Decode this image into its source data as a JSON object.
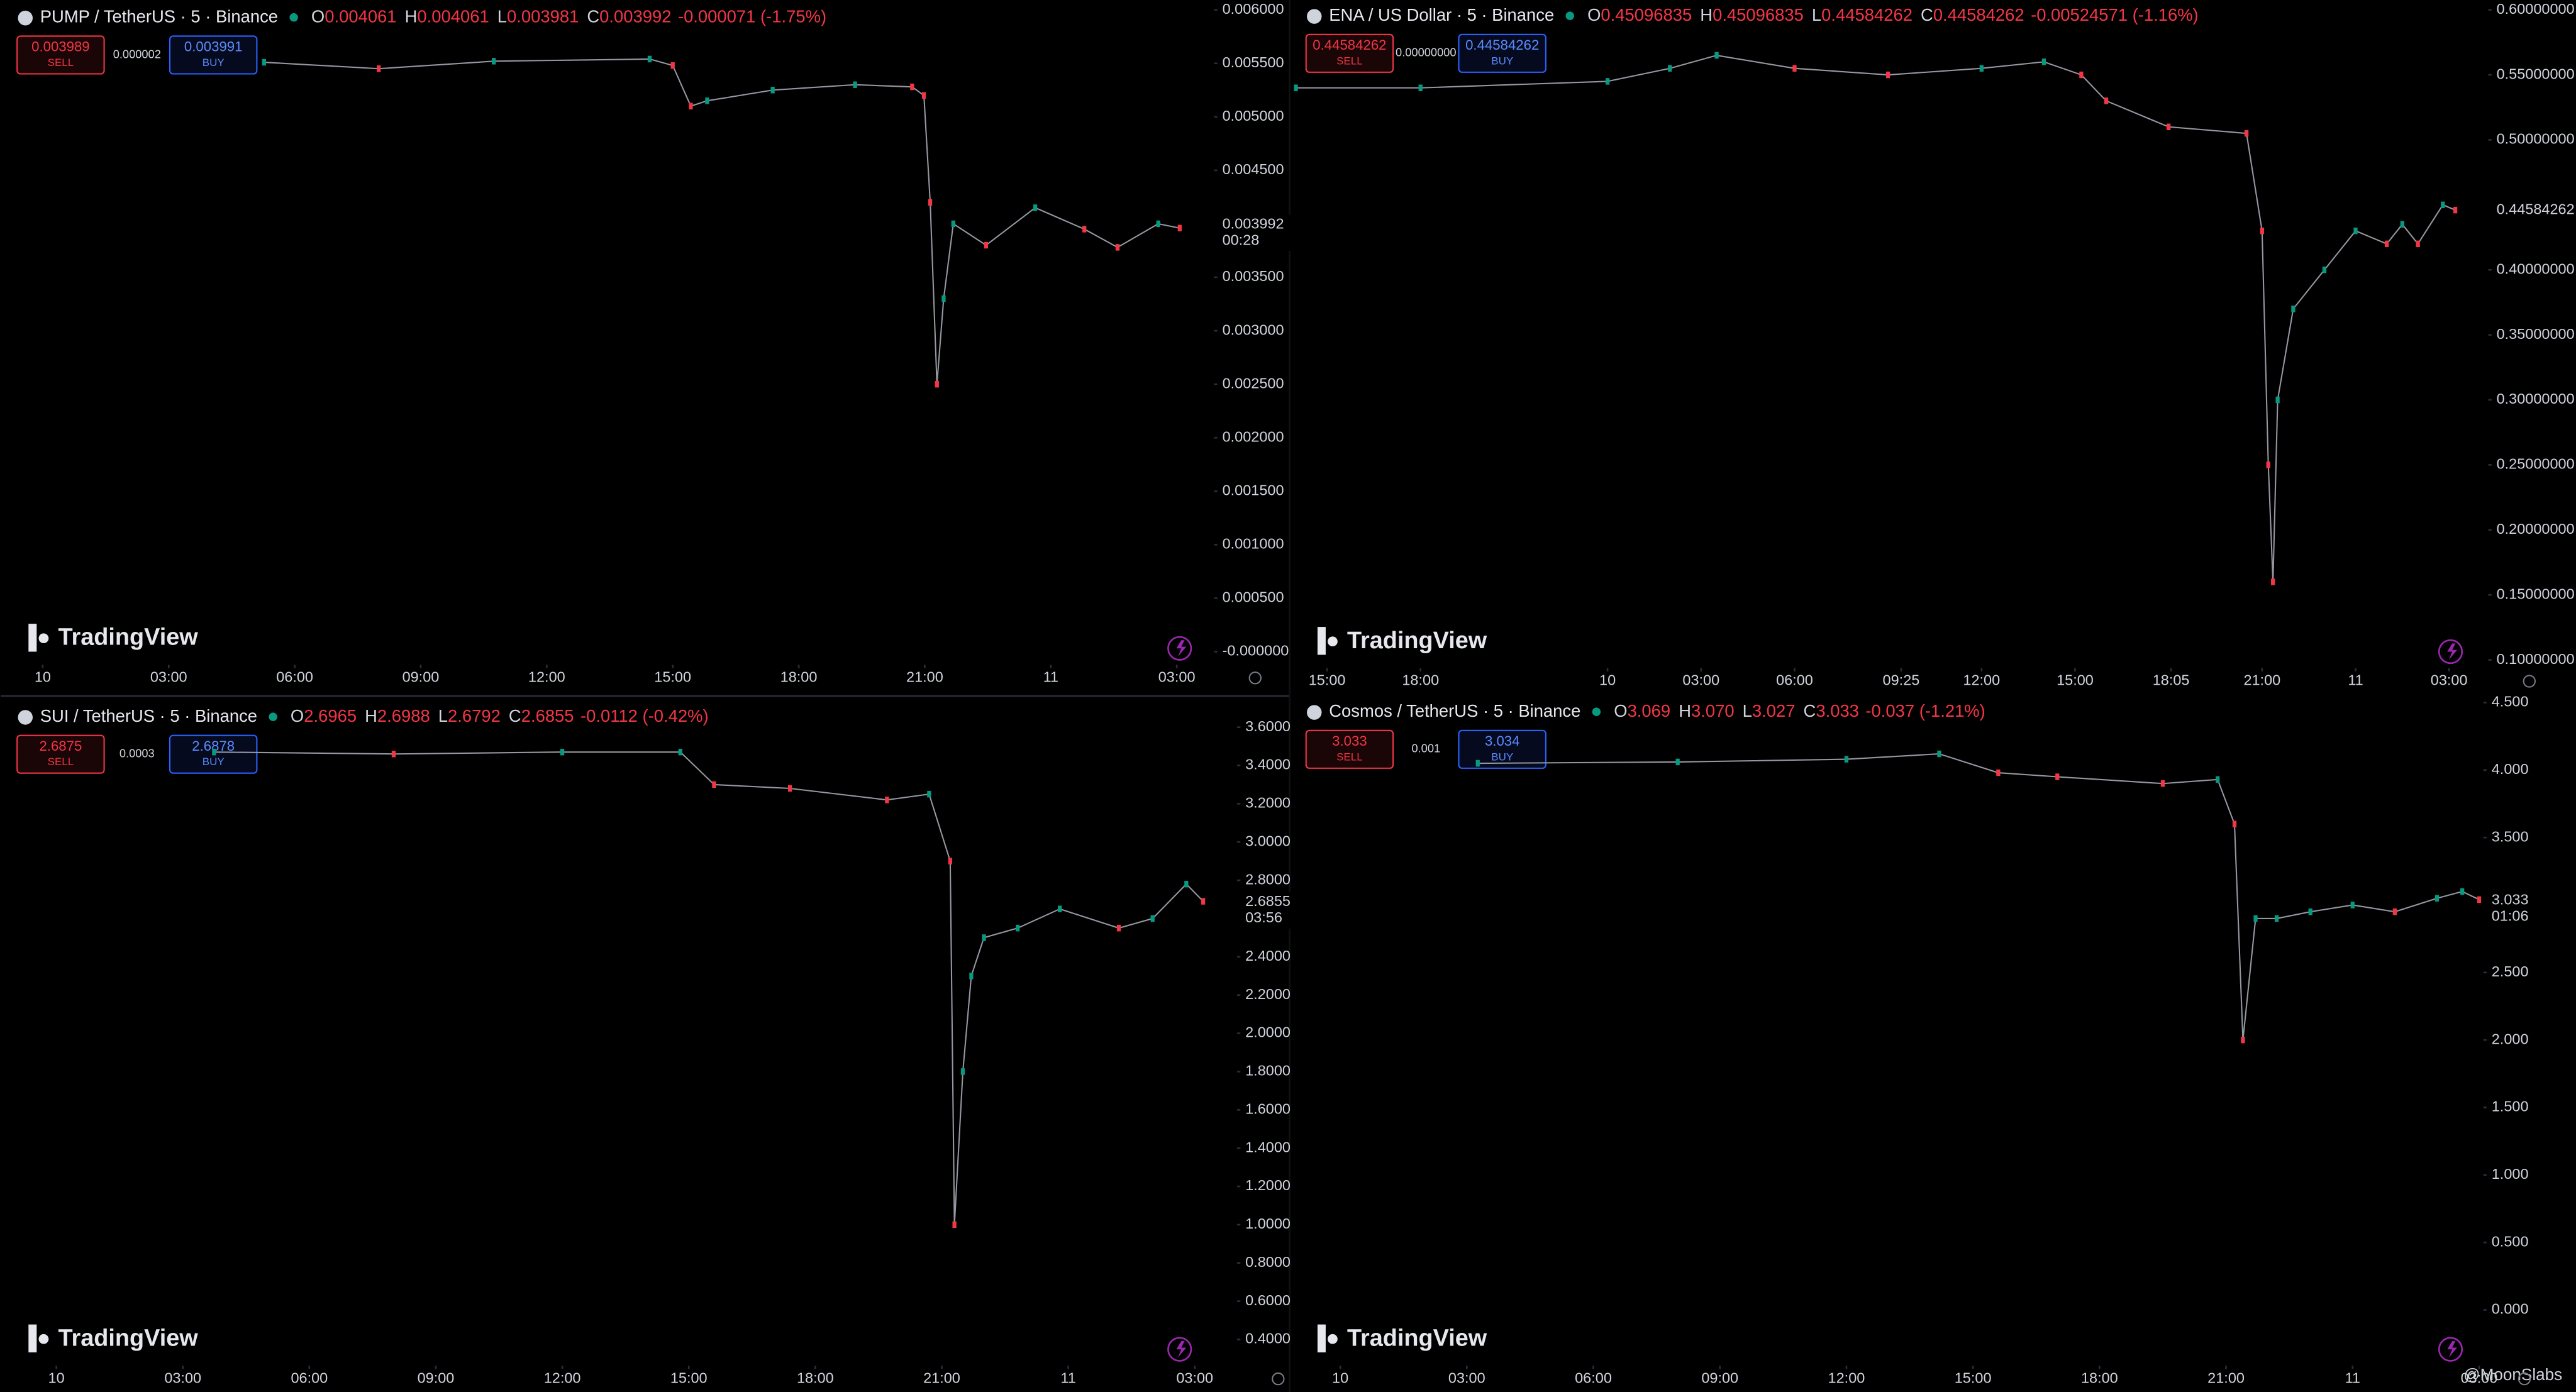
{
  "chart_data": [
    {
      "type": "line",
      "title": "PUMP / TetherUS · 5 · Binance",
      "ohlc": [
        {
          "label": "O",
          "value": "0.004061"
        },
        {
          "label": "H",
          "value": "0.004061"
        },
        {
          "label": "L",
          "value": "0.003981"
        },
        {
          "label": "C",
          "value": "0.003992"
        }
      ],
      "change": "-0.000071 (-1.75%)",
      "sell": {
        "price": "0.003989",
        "label": "SELL"
      },
      "spread": "0.000002",
      "buy": {
        "price": "0.003991",
        "label": "BUY"
      },
      "last_price": {
        "value": 0.003992,
        "label": "0.003992"
      },
      "countdown": "00:28",
      "logo": "TradingView",
      "xlim": [
        -1,
        27.85
      ],
      "xticks": [
        {
          "value": 0,
          "label": "10"
        },
        {
          "value": 3,
          "label": "03:00"
        },
        {
          "value": 6,
          "label": "06:00"
        },
        {
          "value": 9,
          "label": "09:00"
        },
        {
          "value": 12,
          "label": "12:00"
        },
        {
          "value": 15,
          "label": "15:00"
        },
        {
          "value": 18,
          "label": "18:00"
        },
        {
          "value": 21,
          "label": "21:00"
        },
        {
          "value": 24,
          "label": "11"
        },
        {
          "value": 27,
          "label": "03:00"
        }
      ],
      "ylim": [
        0,
        0.006
      ],
      "yticks": [
        {
          "value": 0.006,
          "label": "0.006000"
        },
        {
          "value": 0.0055,
          "label": "0.005500"
        },
        {
          "value": 0.005,
          "label": "0.005000"
        },
        {
          "value": 0.0045,
          "label": "0.004500"
        },
        {
          "value": 0.0035,
          "label": "0.003500"
        },
        {
          "value": 0.003,
          "label": "0.003000"
        },
        {
          "value": 0.0025,
          "label": "0.002500"
        },
        {
          "value": 0.002,
          "label": "0.002000"
        },
        {
          "value": 0.0015,
          "label": "0.001500"
        },
        {
          "value": 0.001,
          "label": "0.001000"
        },
        {
          "value": 0.0005,
          "label": "0.000500"
        },
        {
          "value": 0,
          "label": "-0.000000"
        }
      ],
      "series": [
        {
          "color": "#9598a1",
          "x": [
            5.27,
            8.0,
            10.74,
            14.45,
            15.0,
            15.43,
            15.82,
            17.38,
            19.34,
            20.7,
            20.98,
            21.13,
            21.29,
            21.45,
            21.68,
            22.46,
            23.63,
            24.8,
            25.59,
            26.56,
            27.07
          ],
          "values": [
            0.00551,
            0.00545,
            0.00552,
            0.00554,
            0.00548,
            0.0051,
            0.00515,
            0.00525,
            0.0053,
            0.00528,
            0.0052,
            0.0042,
            0.0025,
            0.0033,
            0.004,
            0.0038,
            0.00415,
            0.00395,
            0.00378,
            0.004,
            0.00396
          ]
        }
      ],
      "up_color": "#089981",
      "down_color": "#f23645"
    },
    {
      "type": "line",
      "title": "ENA / US Dollar · 5 · Binance",
      "ohlc": [
        {
          "label": "O",
          "value": "0.45096835"
        },
        {
          "label": "H",
          "value": "0.45096835"
        },
        {
          "label": "L",
          "value": "0.44584262"
        },
        {
          "label": "C",
          "value": "0.44584262"
        }
      ],
      "change": "-0.00524571 (-1.16%)",
      "sell": {
        "price": "0.44584262",
        "label": "SELL"
      },
      "spread": "0.00000000",
      "buy": {
        "price": "0.44584262",
        "label": "BUY"
      },
      "last_price": {
        "value": 0.44584262,
        "label": "0.44584262"
      },
      "logo": "TradingView",
      "xlim": [
        -10.2,
        28.1
      ],
      "xticks": [
        {
          "value": -9,
          "label": "15:00"
        },
        {
          "value": -6,
          "label": "18:00"
        },
        {
          "value": 0,
          "label": "10"
        },
        {
          "value": 3,
          "label": "03:00"
        },
        {
          "value": 6,
          "label": "06:00"
        },
        {
          "value": 9.42,
          "label": "09:25"
        },
        {
          "value": 12,
          "label": "12:00"
        },
        {
          "value": 15,
          "label": "15:00"
        },
        {
          "value": 18.08,
          "label": "18:05"
        },
        {
          "value": 21,
          "label": "21:00"
        },
        {
          "value": 24,
          "label": "11"
        },
        {
          "value": 27,
          "label": "03:00"
        }
      ],
      "ylim": [
        0.1,
        0.6
      ],
      "yticks": [
        {
          "value": 0.6,
          "label": "0.60000000"
        },
        {
          "value": 0.55,
          "label": "0.55000000"
        },
        {
          "value": 0.5,
          "label": "0.50000000"
        },
        {
          "value": 0.4,
          "label": "0.40000000"
        },
        {
          "value": 0.35,
          "label": "0.35000000"
        },
        {
          "value": 0.3,
          "label": "0.30000000"
        },
        {
          "value": 0.25,
          "label": "0.25000000"
        },
        {
          "value": 0.2,
          "label": "0.20000000"
        },
        {
          "value": 0.15,
          "label": "0.15000000"
        },
        {
          "value": 0.1,
          "label": "0.10000000"
        }
      ],
      "series": [
        {
          "color": "#9598a1",
          "x": [
            -10,
            -6,
            0,
            2,
            3.5,
            6,
            9,
            12,
            14,
            15.2,
            16,
            18,
            20.5,
            21,
            21.2,
            21.35,
            21.5,
            22,
            23,
            24,
            25,
            25.5,
            26,
            26.8,
            27.2
          ],
          "values": [
            0.54,
            0.54,
            0.545,
            0.555,
            0.565,
            0.555,
            0.55,
            0.555,
            0.56,
            0.55,
            0.53,
            0.51,
            0.505,
            0.43,
            0.25,
            0.16,
            0.3,
            0.37,
            0.4,
            0.43,
            0.42,
            0.435,
            0.42,
            0.45,
            0.446
          ]
        }
      ],
      "up_color": "#089981",
      "down_color": "#f23645"
    },
    {
      "type": "line",
      "title": "SUI / TetherUS · 5 · Binance",
      "ohlc": [
        {
          "label": "O",
          "value": "2.6965"
        },
        {
          "label": "H",
          "value": "2.6988"
        },
        {
          "label": "L",
          "value": "2.6792"
        },
        {
          "label": "C",
          "value": "2.6855"
        }
      ],
      "change": "-0.0112 (-0.42%)",
      "sell": {
        "price": "2.6875",
        "label": "SELL"
      },
      "spread": "0.0003",
      "buy": {
        "price": "2.6878",
        "label": "BUY"
      },
      "last_price": {
        "value": 2.6855,
        "label": "2.6855"
      },
      "countdown": "03:56",
      "logo": "TradingView",
      "xlim": [
        -1.32,
        27.42
      ],
      "xticks": [
        {
          "value": 0,
          "label": "10"
        },
        {
          "value": 3,
          "label": "03:00"
        },
        {
          "value": 6,
          "label": "06:00"
        },
        {
          "value": 9,
          "label": "09:00"
        },
        {
          "value": 12,
          "label": "12:00"
        },
        {
          "value": 15,
          "label": "15:00"
        },
        {
          "value": 18,
          "label": "18:00"
        },
        {
          "value": 21,
          "label": "21:00"
        },
        {
          "value": 24,
          "label": "11"
        },
        {
          "value": 27,
          "label": "03:00"
        }
      ],
      "ylim": [
        0.4,
        3.6
      ],
      "yticks": [
        {
          "value": 3.6,
          "label": "3.6000"
        },
        {
          "value": 3.4,
          "label": "3.4000"
        },
        {
          "value": 3.2,
          "label": "3.2000"
        },
        {
          "value": 3,
          "label": "3.0000"
        },
        {
          "value": 2.8,
          "label": "2.8000"
        },
        {
          "value": 2.4,
          "label": "2.4000"
        },
        {
          "value": 2.2,
          "label": "2.2000"
        },
        {
          "value": 2,
          "label": "2.0000"
        },
        {
          "value": 1.8,
          "label": "1.8000"
        },
        {
          "value": 1.6,
          "label": "1.6000"
        },
        {
          "value": 1.4,
          "label": "1.4000"
        },
        {
          "value": 1.2,
          "label": "1.2000"
        },
        {
          "value": 1,
          "label": "1.0000"
        },
        {
          "value": 0.8,
          "label": "0.8000"
        },
        {
          "value": 0.6,
          "label": "0.6000"
        },
        {
          "value": 0.4,
          "label": "0.4000"
        }
      ],
      "series": [
        {
          "color": "#9598a1",
          "x": [
            3.74,
            8,
            12,
            14.8,
            15.6,
            17.4,
            19.7,
            20.7,
            21.2,
            21.3,
            21.5,
            21.7,
            22.0,
            22.8,
            23.8,
            25.2,
            26,
            26.8,
            27.2
          ],
          "values": [
            3.47,
            3.46,
            3.47,
            3.47,
            3.3,
            3.28,
            3.22,
            3.25,
            2.9,
            1.0,
            1.8,
            2.3,
            2.5,
            2.55,
            2.65,
            2.55,
            2.6,
            2.78,
            2.69
          ]
        }
      ],
      "up_color": "#089981",
      "down_color": "#f23645"
    },
    {
      "type": "line",
      "title": "Cosmos / TetherUS · 5 · Binance",
      "ohlc": [
        {
          "label": "O",
          "value": "3.069"
        },
        {
          "label": "H",
          "value": "3.070"
        },
        {
          "label": "L",
          "value": "3.027"
        },
        {
          "label": "C",
          "value": "3.033"
        }
      ],
      "change": "-0.037 (-1.21%)",
      "sell": {
        "price": "3.033",
        "label": "SELL"
      },
      "spread": "0.001",
      "buy": {
        "price": "3.034",
        "label": "BUY"
      },
      "last_price": {
        "value": 3.033,
        "label": "3.033"
      },
      "countdown": "01:06",
      "logo": "TradingView",
      "xlim": [
        -1.2,
        27.1
      ],
      "xticks": [
        {
          "value": 0,
          "label": "10"
        },
        {
          "value": 3,
          "label": "03:00"
        },
        {
          "value": 6,
          "label": "06:00"
        },
        {
          "value": 9,
          "label": "09:00"
        },
        {
          "value": 12,
          "label": "12:00"
        },
        {
          "value": 15,
          "label": "15:00"
        },
        {
          "value": 18,
          "label": "18:00"
        },
        {
          "value": 21,
          "label": "21:00"
        },
        {
          "value": 24,
          "label": "11"
        },
        {
          "value": 27,
          "label": "03:00"
        }
      ],
      "ylim": [
        0,
        4.5
      ],
      "yticks": [
        {
          "value": 4.5,
          "label": "4.500"
        },
        {
          "value": 4,
          "label": "4.000"
        },
        {
          "value": 3.5,
          "label": "3.500"
        },
        {
          "value": 2.5,
          "label": "2.500"
        },
        {
          "value": 2,
          "label": "2.000"
        },
        {
          "value": 1.5,
          "label": "1.500"
        },
        {
          "value": 1,
          "label": "1.000"
        },
        {
          "value": 0.5,
          "label": "0.500"
        },
        {
          "value": 0,
          "label": "0.000"
        }
      ],
      "series": [
        {
          "color": "#9598a1",
          "x": [
            3.26,
            8,
            12,
            14.2,
            15.6,
            17,
            19.5,
            20.8,
            21.2,
            21.4,
            21.7,
            22.2,
            23,
            24,
            25,
            26,
            26.6,
            27
          ],
          "values": [
            4.05,
            4.06,
            4.08,
            4.12,
            3.98,
            3.95,
            3.9,
            3.93,
            3.6,
            2.0,
            2.9,
            2.9,
            2.95,
            3.0,
            2.95,
            3.05,
            3.1,
            3.04
          ]
        }
      ],
      "up_color": "#089981",
      "down_color": "#f23645"
    }
  ],
  "watermark": "@MoonSlabs"
}
